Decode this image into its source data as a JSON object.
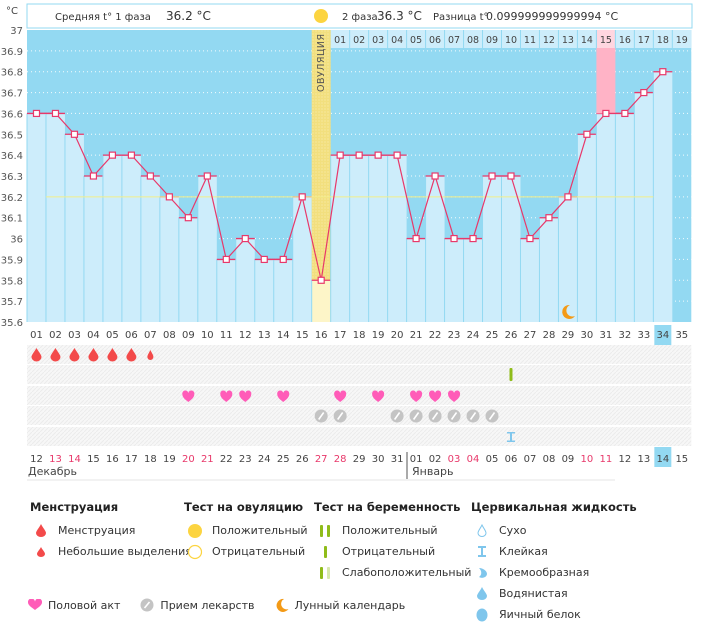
{
  "header": {
    "phase1_label": "Средняя t° 1 фаза",
    "phase1_value": "36.2 °C",
    "phase2_label": "2 фаза",
    "phase2_value": "36.3 °C",
    "difference_label": "Разница t°",
    "difference_value": "0.099999999999994 °C"
  },
  "ovulation_label": "ОВУЛЯЦИЯ",
  "unit_label": "°C",
  "months": [
    "Декабрь",
    "Январь"
  ],
  "colors": {
    "chart_bg": "#93d9f2",
    "bar_fill": "#cdedfb",
    "line": "#e8386a",
    "ovulation": "#f7e79a",
    "highlight_day": "#ffb3c6",
    "coverline": "#f3ee8a",
    "weekend": "#e8386a"
  },
  "chart_data": {
    "type": "line",
    "title": "",
    "xlabel": "",
    "ylabel": "°C",
    "ylim": [
      35.6,
      37
    ],
    "yticks": [
      "37",
      "36.9",
      "36.8",
      "36.7",
      "36.6",
      "36.5",
      "36.4",
      "36.3",
      "36.2",
      "36.1",
      "36",
      "35.9",
      "35.8",
      "35.7",
      "35.6"
    ],
    "cycle_days": [
      "01",
      "02",
      "03",
      "04",
      "05",
      "06",
      "07",
      "08",
      "09",
      "10",
      "11",
      "12",
      "13",
      "14",
      "15",
      "16",
      "17",
      "18",
      "19",
      "20",
      "21",
      "22",
      "23",
      "24",
      "25",
      "26",
      "27",
      "28",
      "29",
      "30",
      "31",
      "32",
      "33",
      "34",
      "35"
    ],
    "post_ovulation_days": [
      "01",
      "02",
      "03",
      "04",
      "05",
      "06",
      "07",
      "08",
      "09",
      "10",
      "11",
      "12",
      "13",
      "14",
      "15",
      "16",
      "17",
      "18",
      "19"
    ],
    "calendar_dates": [
      "12",
      "13",
      "14",
      "15",
      "16",
      "17",
      "18",
      "19",
      "20",
      "21",
      "22",
      "23",
      "24",
      "25",
      "26",
      "27",
      "28",
      "29",
      "30",
      "31",
      "01",
      "02",
      "03",
      "04",
      "05",
      "06",
      "07",
      "08",
      "09",
      "10",
      "11",
      "12",
      "13",
      "14",
      "15"
    ],
    "weekend_dates_idx": [
      1,
      2,
      8,
      9,
      15,
      16,
      22,
      23,
      29,
      30
    ],
    "series": [
      {
        "name": "Базальная температура",
        "values": [
          36.6,
          36.6,
          36.5,
          36.3,
          36.4,
          36.4,
          36.3,
          36.2,
          36.1,
          36.3,
          35.9,
          36.0,
          35.9,
          35.9,
          36.2,
          35.8,
          36.4,
          36.4,
          36.4,
          36.4,
          36.0,
          36.3,
          36.0,
          36.0,
          36.3,
          36.3,
          36.0,
          36.1,
          36.2,
          36.5,
          36.6,
          36.6,
          36.7,
          36.8
        ]
      }
    ],
    "coverline": 36.2,
    "ovulation_day": 16,
    "highlighted_post_ovulation_day": "15",
    "current_day": "34",
    "current_date": "14",
    "moon_day": 29,
    "markers": {
      "menstruation": [
        1,
        2,
        3,
        4,
        5,
        6
      ],
      "spotting": [
        7
      ],
      "pregnancy_test_negative": [
        26
      ],
      "intercourse": [
        9,
        11,
        12,
        14,
        17,
        19,
        21,
        22,
        23
      ],
      "medication": [
        16,
        17,
        20,
        21,
        22,
        23,
        24,
        25
      ],
      "cervical_sticky": [
        26
      ]
    }
  },
  "legend": {
    "menstruation": {
      "title": "Менструация",
      "items": [
        "Менструация",
        "Небольшие выделения"
      ]
    },
    "ovulation_test": {
      "title": "Тест на овуляцию",
      "items": [
        "Положительный",
        "Отрицательный"
      ]
    },
    "pregnancy_test": {
      "title": "Тест на беременность",
      "items": [
        "Положительный",
        "Отрицательный",
        "Слабоположительный"
      ]
    },
    "cervical_fluid": {
      "title": "Цервикальная жидкость",
      "items": [
        "Сухо",
        "Клейкая",
        "Кремообразная",
        "Водянистая",
        "Яичный белок"
      ]
    },
    "other": [
      "Половой акт",
      "Прием лекарств",
      "Лунный календарь"
    ]
  }
}
